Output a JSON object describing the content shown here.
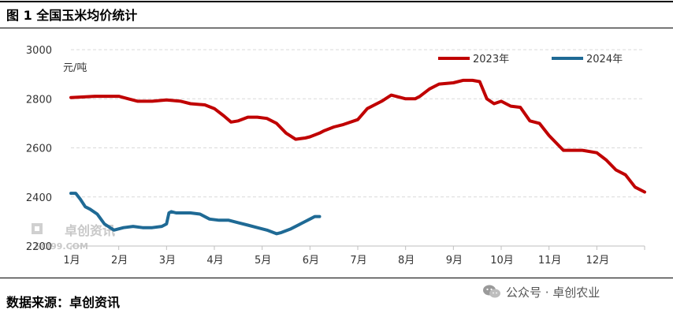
{
  "header": {
    "figure_title": "图 1  全国玉米均价统计"
  },
  "footer": {
    "source": "数据来源：卓创资讯",
    "wechat": "公众号 · 卓创农业"
  },
  "watermark": {
    "text_cn": "卓创资讯",
    "text_en": "SCI99.COM"
  },
  "chart_data": {
    "type": "line",
    "title": "",
    "ylabel": "元/吨",
    "xlabel": "",
    "ylim": [
      2200,
      3000
    ],
    "yticks": [
      2200,
      2400,
      2600,
      2800,
      3000
    ],
    "xlim": [
      0,
      12
    ],
    "months": [
      "1月",
      "2月",
      "3月",
      "4月",
      "5月",
      "6月",
      "7月",
      "8月",
      "9月",
      "10月",
      "11月",
      "12月"
    ],
    "grid": "horizontal-dashed",
    "legend_position": "top-right",
    "series": [
      {
        "name": "2023年",
        "color": "#c00000",
        "x": [
          0.0,
          0.5,
          1.0,
          1.2,
          1.4,
          1.7,
          2.0,
          2.3,
          2.5,
          2.8,
          3.0,
          3.2,
          3.35,
          3.5,
          3.7,
          3.9,
          4.1,
          4.3,
          4.5,
          4.7,
          4.9,
          5.0,
          5.2,
          5.3,
          5.5,
          5.7,
          6.0,
          6.2,
          6.5,
          6.7,
          7.0,
          7.2,
          7.3,
          7.5,
          7.7,
          8.0,
          8.2,
          8.4,
          8.55,
          8.7,
          8.85,
          9.0,
          9.2,
          9.4,
          9.6,
          9.8,
          10.0,
          10.3,
          10.5,
          10.7,
          11.0,
          11.2,
          11.4,
          11.6,
          11.8,
          12.0
        ],
        "y": [
          2805,
          2810,
          2810,
          2800,
          2790,
          2790,
          2795,
          2790,
          2780,
          2775,
          2760,
          2730,
          2705,
          2710,
          2725,
          2725,
          2720,
          2700,
          2660,
          2635,
          2640,
          2645,
          2660,
          2670,
          2685,
          2695,
          2715,
          2760,
          2790,
          2815,
          2800,
          2800,
          2810,
          2840,
          2860,
          2865,
          2875,
          2875,
          2870,
          2800,
          2780,
          2790,
          2770,
          2765,
          2710,
          2700,
          2650,
          2590,
          2590,
          2590,
          2580,
          2550,
          2510,
          2490,
          2440,
          2420
        ]
      },
      {
        "name": "2024年",
        "color": "#1f6a95",
        "x": [
          0.0,
          0.1,
          0.2,
          0.3,
          0.4,
          0.55,
          0.7,
          0.9,
          1.1,
          1.3,
          1.5,
          1.7,
          1.9,
          2.0,
          2.05,
          2.1,
          2.2,
          2.3,
          2.5,
          2.7,
          2.9,
          3.1,
          3.3,
          3.5,
          3.7,
          3.9,
          4.1,
          4.3,
          4.4,
          4.6,
          4.8,
          4.9,
          5.0,
          5.1,
          5.2
        ],
        "y": [
          2415,
          2415,
          2390,
          2360,
          2350,
          2330,
          2290,
          2265,
          2275,
          2280,
          2275,
          2275,
          2280,
          2290,
          2335,
          2340,
          2335,
          2335,
          2335,
          2330,
          2310,
          2305,
          2305,
          2295,
          2285,
          2275,
          2265,
          2250,
          2255,
          2270,
          2290,
          2300,
          2310,
          2320,
          2320
        ]
      }
    ]
  }
}
